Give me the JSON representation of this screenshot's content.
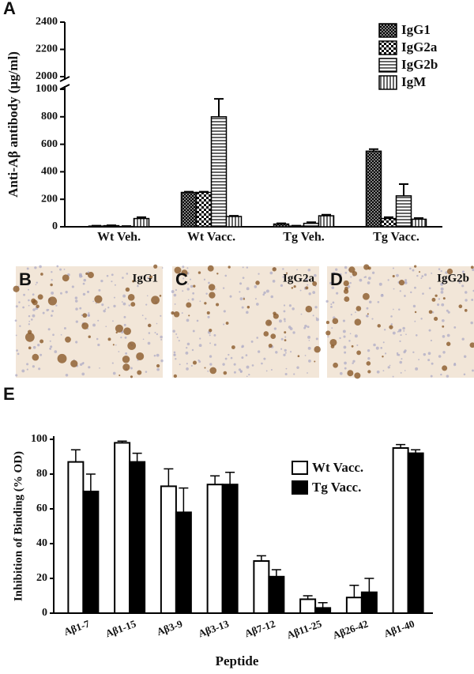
{
  "chart_data": [
    {
      "type": "bar",
      "panel": "A",
      "ylabel": "Anti-Aβ antibody (μg/ml)",
      "categories": [
        "Wt Veh.",
        "Wt Vacc.",
        "Tg Veh.",
        "Tg Vacc."
      ],
      "ylim": [
        0,
        2400
      ],
      "ybreak": [
        1000,
        2000
      ],
      "yticks": [
        0,
        200,
        400,
        600,
        800,
        1000,
        2000,
        2200,
        2400
      ],
      "legend": "upper right",
      "series": [
        {
          "name": "IgG1",
          "color": "#000000",
          "pattern": "crosshatch",
          "values": [
            5,
            250,
            20,
            550
          ],
          "errors": [
            3,
            5,
            5,
            15
          ]
        },
        {
          "name": "IgG2a",
          "color": "#000000",
          "pattern": "checker",
          "values": [
            8,
            250,
            5,
            60
          ],
          "errors": [
            3,
            5,
            3,
            10
          ]
        },
        {
          "name": "IgG2b",
          "color": "#000000",
          "pattern": "horizontal",
          "values": [
            2,
            800,
            25,
            225
          ],
          "errors": [
            3,
            130,
            8,
            85
          ]
        },
        {
          "name": "IgM",
          "color": "#000000",
          "pattern": "vertical",
          "values": [
            60,
            75,
            80,
            55
          ],
          "errors": [
            10,
            5,
            8,
            8
          ]
        }
      ]
    },
    {
      "type": "bar",
      "panel": "E",
      "ylabel": "Inhibition of Binding (% OD)",
      "xlabel": "Peptide",
      "categories": [
        "Aβ1-7",
        "Aβ1-15",
        "Aβ3-9",
        "Aβ3-13",
        "Aβ7-12",
        "Aβ11-25",
        "Aβ26-42",
        "Aβ1-40"
      ],
      "ylim": [
        0,
        100
      ],
      "yticks": [
        0,
        20,
        40,
        60,
        80,
        100
      ],
      "legend": "upper right",
      "series": [
        {
          "name": "Wt Vacc.",
          "color": "#ffffff",
          "values": [
            87,
            98,
            73,
            74,
            30,
            8,
            9,
            95
          ],
          "errors": [
            7,
            1,
            10,
            5,
            3,
            2,
            7,
            2
          ]
        },
        {
          "name": "Tg Vacc.",
          "color": "#000000",
          "values": [
            70,
            87,
            58,
            74,
            21,
            3,
            12,
            92
          ],
          "errors": [
            10,
            5,
            14,
            7,
            4,
            3,
            8,
            2
          ]
        }
      ]
    }
  ],
  "images": [
    {
      "letter": "B",
      "label": "IgG1"
    },
    {
      "letter": "C",
      "label": "IgG2a"
    },
    {
      "letter": "D",
      "label": "IgG2b"
    }
  ]
}
